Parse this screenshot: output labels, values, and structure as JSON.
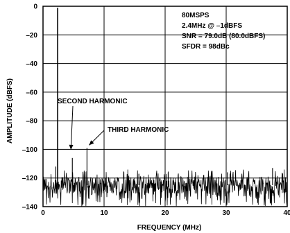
{
  "chart_data": {
    "type": "line",
    "title": "",
    "xlabel": "FREQUENCY (MHz)",
    "ylabel": "AMPLITUDE (dBFS)",
    "xlim": [
      0,
      40
    ],
    "ylim": [
      -140,
      0
    ],
    "xticks": [
      0,
      10,
      20,
      30,
      40
    ],
    "yticks": [
      0,
      -20,
      -40,
      -60,
      -80,
      -100,
      -120,
      -140
    ],
    "grid": true,
    "info_lines": [
      "80MSPS",
      "2.4MHz @ –1dBFS",
      "SNR = 79.0dB (80.0dBFS)",
      "SFDR = 98dBc"
    ],
    "noise_floor": {
      "mean": -125,
      "peak_low": -140,
      "peak_high": -114
    },
    "spurs": [
      {
        "name": "fundamental",
        "x": 2.4,
        "y": -1
      },
      {
        "name": "second-harmonic",
        "x": 4.8,
        "y": -106
      },
      {
        "name": "third-harmonic",
        "x": 7.2,
        "y": -99
      },
      {
        "name": "spur",
        "x": 2.1,
        "y": -112
      },
      {
        "name": "spur",
        "x": 15.7,
        "y": -117
      },
      {
        "name": "spur",
        "x": 20.5,
        "y": -116
      },
      {
        "name": "spur",
        "x": 30.2,
        "y": -116
      },
      {
        "name": "spur",
        "x": 37.6,
        "y": -113
      }
    ],
    "annotations": [
      {
        "label": "SECOND HARMONIC",
        "target_x": 4.8,
        "target_y": -106
      },
      {
        "label": "THIRD HARMONIC",
        "target_x": 7.2,
        "target_y": -99
      }
    ]
  }
}
